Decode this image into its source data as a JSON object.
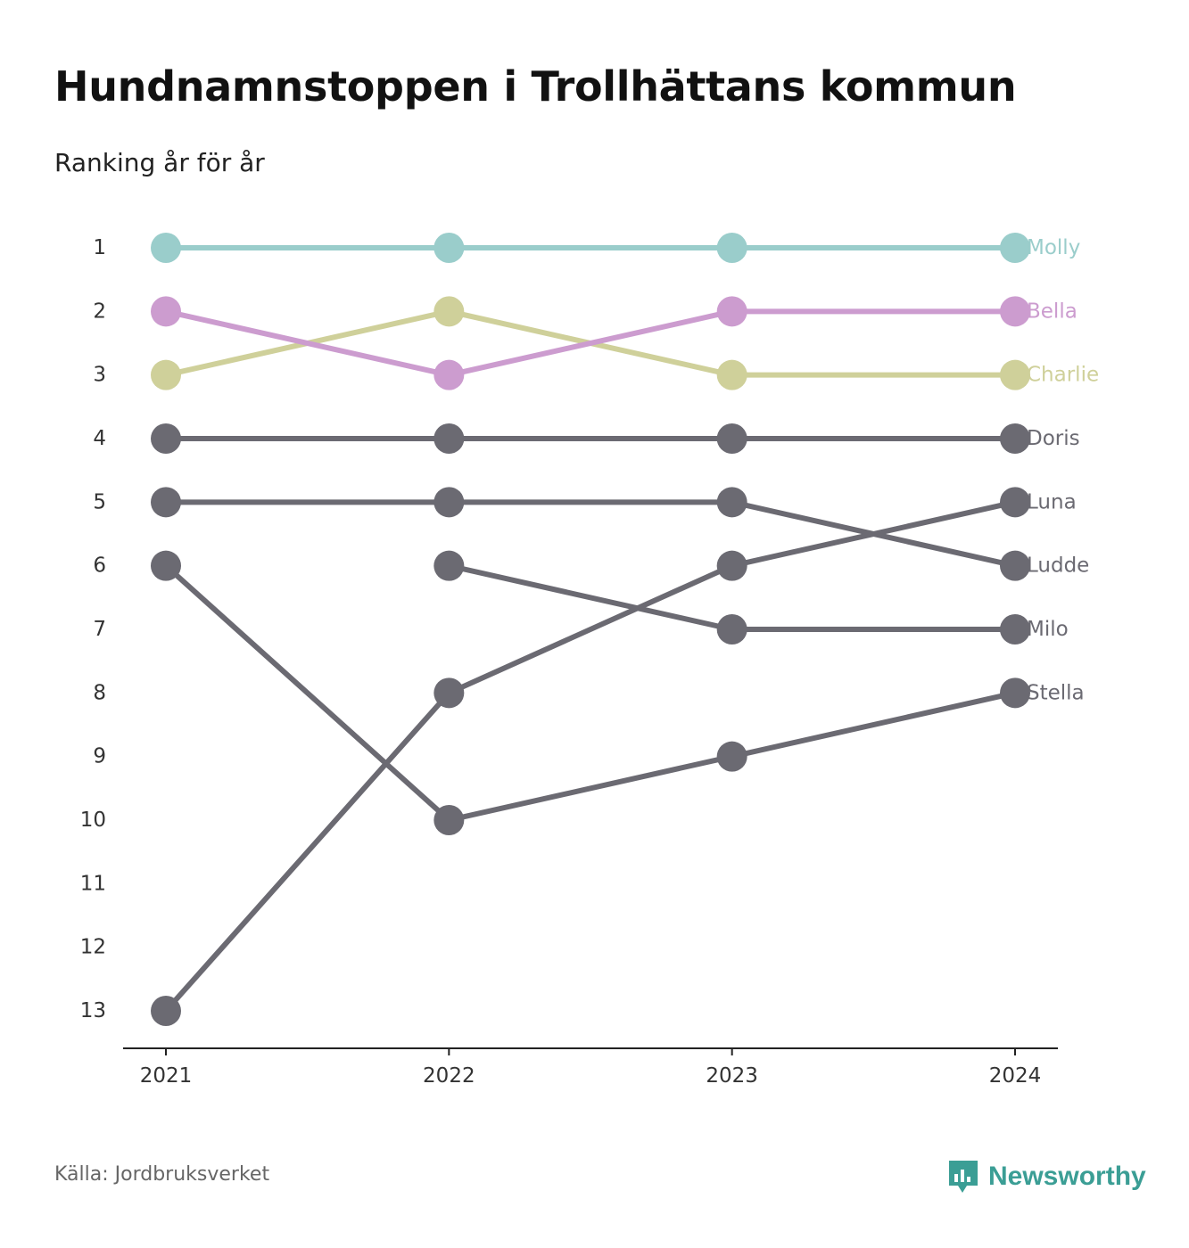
{
  "title": "Hundnamnstoppen i Trollhättans kommun",
  "subtitle": "Ranking år för år",
  "source": "Källa: Jordbruksverket",
  "brand": {
    "name": "Newsworthy",
    "icon": "bar-chart-speech-icon",
    "color": "#3b9e95"
  },
  "chart_data": {
    "type": "line",
    "chart_style": "bump",
    "x": [
      "2021",
      "2022",
      "2023",
      "2024"
    ],
    "y_axis": {
      "ticks": [
        1,
        2,
        3,
        4,
        5,
        6,
        7,
        8,
        9,
        10,
        11,
        12,
        13
      ],
      "inverted": true,
      "ylim": [
        1,
        13
      ]
    },
    "grid": false,
    "legend": "direct labels at line ends",
    "series": [
      {
        "name": "Molly",
        "color": "#9acdcb",
        "values": [
          1,
          1,
          1,
          1
        ]
      },
      {
        "name": "Bella",
        "color": "#cc9ccf",
        "values": [
          2,
          3,
          2,
          2
        ]
      },
      {
        "name": "Charlie",
        "color": "#cfd09a",
        "values": [
          3,
          2,
          3,
          3
        ]
      },
      {
        "name": "Doris",
        "color": "#6b6a72",
        "values": [
          4,
          4,
          4,
          4
        ]
      },
      {
        "name": "Luna",
        "color": "#6b6a72",
        "values": [
          13,
          8,
          6,
          5
        ]
      },
      {
        "name": "Ludde",
        "color": "#6b6a72",
        "values": [
          5,
          5,
          5,
          6
        ]
      },
      {
        "name": "Milo",
        "color": "#6b6a72",
        "values": [
          null,
          6,
          7,
          7
        ]
      },
      {
        "name": "Stella",
        "color": "#6b6a72",
        "values": [
          6,
          10,
          9,
          8
        ]
      }
    ]
  }
}
